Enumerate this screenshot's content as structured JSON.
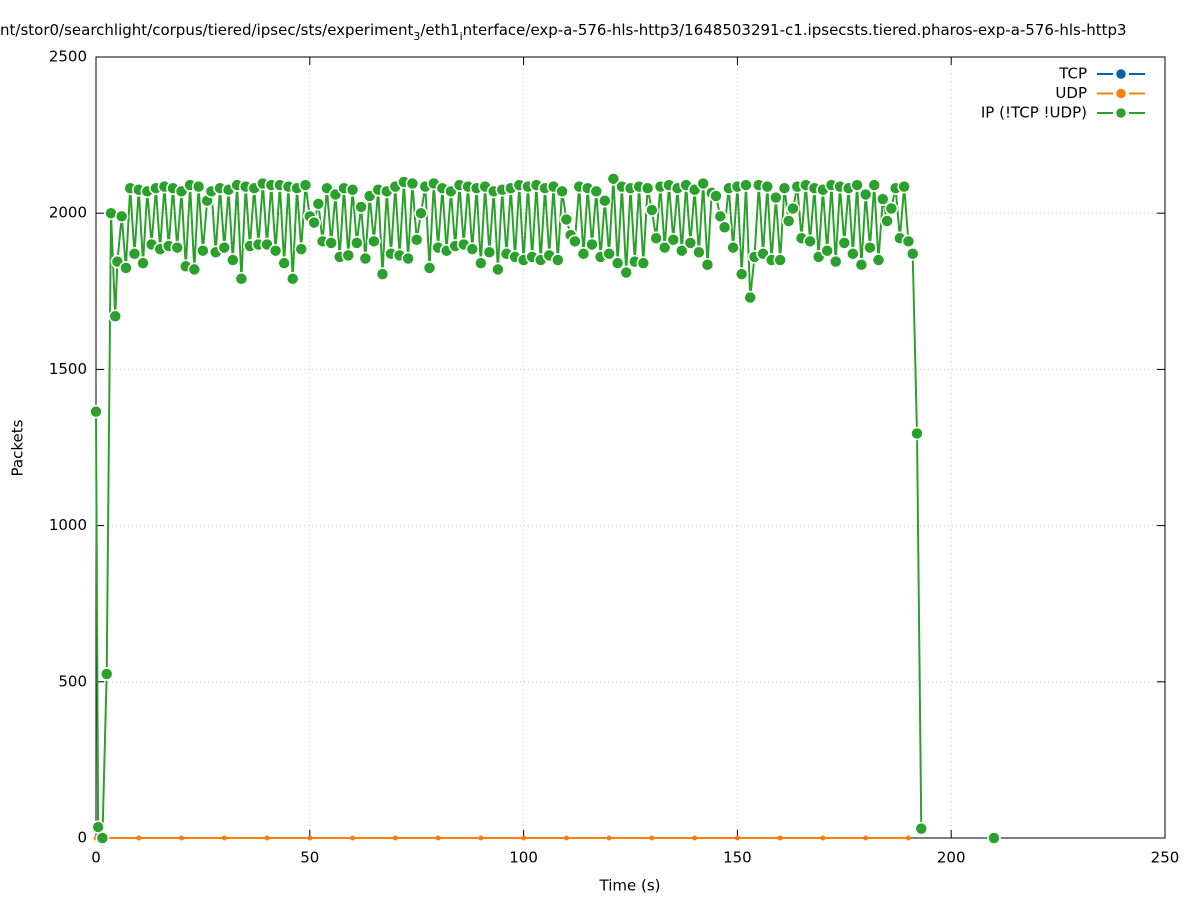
{
  "chart_data": {
    "type": "line",
    "title": [
      {
        "text": "nt/stor0/searchlight/corpus/tiered/ipsec/sts/experiment"
      },
      {
        "text": "3",
        "sub": true
      },
      {
        "text": "/eth1"
      },
      {
        "text": "i",
        "sub": true
      },
      {
        "text": "nterface/exp-a-576-hls-http3/1648503291-c1.ipsecsts.tiered.pharos-exp-a-576-hls-http3"
      }
    ],
    "x_label": "Time (s)",
    "y_label": "Packets",
    "xlim": [
      0,
      250
    ],
    "xticks": [
      0,
      50,
      100,
      150,
      200,
      250
    ],
    "ylim": [
      0,
      2500
    ],
    "yticks": [
      0,
      500,
      1000,
      1500,
      2000,
      2500
    ],
    "grid": true,
    "legend": "top-right",
    "series": [
      {
        "name": "TCP",
        "color": "#0060ad",
        "x": [],
        "values": []
      },
      {
        "name": "UDP",
        "color": "#ff7f0e",
        "x": [
          0,
          10,
          20,
          30,
          40,
          50,
          60,
          70,
          80,
          90,
          100,
          110,
          120,
          130,
          140,
          150,
          160,
          170,
          180,
          190
        ],
        "values": [
          0,
          0,
          0,
          0,
          0,
          0,
          0,
          0,
          0,
          0,
          0,
          0,
          0,
          0,
          0,
          0,
          0,
          0,
          0,
          0
        ]
      },
      {
        "name": "IP (!TCP  !UDP)",
        "color": "#2ca02c",
        "x": [
          0,
          0.5,
          1.5,
          2.5,
          3.5,
          4.5,
          5,
          6,
          7,
          8,
          9,
          10,
          11,
          12,
          13,
          14,
          15,
          16,
          17,
          18,
          19,
          20,
          21,
          22,
          23,
          24,
          25,
          26,
          27,
          28,
          29,
          30,
          31,
          32,
          33,
          34,
          35,
          36,
          37,
          38,
          39,
          40,
          41,
          42,
          43,
          44,
          45,
          46,
          47,
          48,
          49,
          50,
          51,
          52,
          53,
          54,
          55,
          56,
          57,
          58,
          59,
          60,
          61,
          62,
          63,
          64,
          65,
          66,
          67,
          68,
          69,
          70,
          71,
          72,
          73,
          74,
          75,
          76,
          77,
          78,
          79,
          80,
          81,
          82,
          83,
          84,
          85,
          86,
          87,
          88,
          89,
          90,
          91,
          92,
          93,
          94,
          95,
          96,
          97,
          98,
          99,
          100,
          101,
          102,
          103,
          104,
          105,
          106,
          107,
          108,
          109,
          110,
          111,
          112,
          113,
          114,
          115,
          116,
          117,
          118,
          119,
          120,
          121,
          122,
          123,
          124,
          125,
          126,
          127,
          128,
          129,
          130,
          131,
          132,
          133,
          134,
          135,
          136,
          137,
          138,
          139,
          140,
          141,
          142,
          143,
          144,
          145,
          146,
          147,
          148,
          149,
          150,
          151,
          152,
          153,
          154,
          155,
          156,
          157,
          158,
          159,
          160,
          161,
          162,
          163,
          164,
          165,
          166,
          167,
          168,
          169,
          170,
          171,
          172,
          173,
          174,
          175,
          176,
          177,
          178,
          179,
          180,
          181,
          182,
          183,
          184,
          185,
          186,
          187,
          188,
          189,
          190,
          191,
          192,
          193,
          200,
          210
        ],
        "values": [
          1365,
          35,
          0,
          525,
          2000,
          1670,
          1845,
          1990,
          1825,
          2080,
          1870,
          2075,
          1840,
          2070,
          1900,
          2080,
          1885,
          2085,
          1895,
          2080,
          1890,
          2070,
          1830,
          2090,
          1820,
          2085,
          1880,
          2040,
          2070,
          1875,
          2080,
          1890,
          2075,
          1850,
          2090,
          1790,
          2085,
          1895,
          2080,
          1900,
          2095,
          1900,
          2090,
          1880,
          2090,
          1840,
          2085,
          1790,
          2080,
          1885,
          2090,
          1990,
          1970,
          2030,
          1910,
          2080,
          1905,
          2060,
          1860,
          2080,
          1865,
          2075,
          1905,
          2020,
          1855,
          2055,
          1910,
          2075,
          1805,
          2070,
          1870,
          2085,
          1865,
          2100,
          1855,
          2095,
          1915,
          2000,
          2085,
          1825,
          2095,
          1890,
          2080,
          1880,
          2070,
          1895,
          2090,
          1900,
          2085,
          1885,
          2080,
          1840,
          2085,
          1875,
          2070,
          1820,
          2075,
          1870,
          2080,
          1860,
          2090,
          1850,
          2085,
          1860,
          2090,
          1850,
          2080,
          1865,
          2085,
          1850,
          2070,
          1980,
          1930,
          1910,
          2085,
          1870,
          2080,
          1900,
          2070,
          1860,
          2040,
          1870,
          2110,
          1840,
          2085,
          1810,
          2080,
          1845,
          2085,
          1840,
          2080,
          2010,
          1920,
          2085,
          1890,
          2090,
          1915,
          2080,
          1880,
          2090,
          1905,
          2075,
          1875,
          2095,
          1835,
          2065,
          2055,
          1990,
          1955,
          2080,
          1890,
          2085,
          1805,
          2090,
          1730,
          1860,
          2090,
          1870,
          2085,
          1850,
          2050,
          1850,
          2080,
          1975,
          2015,
          2085,
          1920,
          2090,
          1910,
          2080,
          1860,
          2075,
          1880,
          2090,
          1845,
          2085,
          1905,
          2080,
          1870,
          2090,
          1835,
          2060,
          1890,
          2090,
          1850,
          2045,
          1975,
          2015,
          2080,
          1920,
          2085,
          1910,
          1870,
          1295,
          30,
          null,
          0
        ]
      }
    ]
  }
}
